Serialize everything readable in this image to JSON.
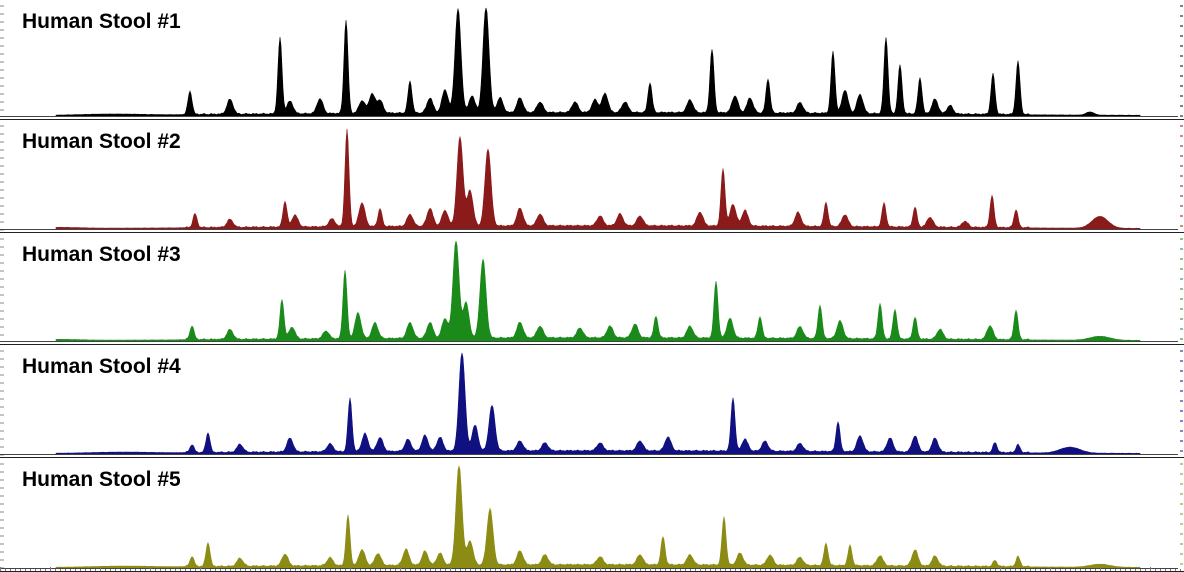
{
  "chart_data": {
    "type": "area",
    "title": "",
    "xlabel": "",
    "ylabel": "",
    "x_range": [
      0,
      1184
    ],
    "y_range": [
      0,
      1
    ],
    "grid": false,
    "legend": "none",
    "peak_shape": "narrow gaussian",
    "series": [
      {
        "name": "Human Stool #1",
        "color": "#000000",
        "baseline": 0.03,
        "peaks": [
          [
            110,
            0.01,
            30
          ],
          [
            190,
            0.22,
            2
          ],
          [
            230,
            0.14,
            3
          ],
          [
            280,
            0.72,
            2
          ],
          [
            290,
            0.12,
            3
          ],
          [
            320,
            0.14,
            3
          ],
          [
            346,
            0.88,
            2
          ],
          [
            362,
            0.12,
            3
          ],
          [
            372,
            0.18,
            3
          ],
          [
            380,
            0.12,
            3
          ],
          [
            410,
            0.3,
            2
          ],
          [
            430,
            0.14,
            3
          ],
          [
            445,
            0.22,
            3
          ],
          [
            458,
            0.98,
            3
          ],
          [
            472,
            0.16,
            3
          ],
          [
            486,
            1.0,
            3
          ],
          [
            500,
            0.14,
            3
          ],
          [
            520,
            0.14,
            3
          ],
          [
            540,
            0.1,
            3
          ],
          [
            575,
            0.1,
            3
          ],
          [
            595,
            0.12,
            3
          ],
          [
            605,
            0.18,
            3
          ],
          [
            625,
            0.1,
            3
          ],
          [
            650,
            0.28,
            2
          ],
          [
            690,
            0.12,
            3
          ],
          [
            712,
            0.6,
            2
          ],
          [
            735,
            0.16,
            3
          ],
          [
            750,
            0.14,
            3
          ],
          [
            768,
            0.32,
            2
          ],
          [
            800,
            0.1,
            3
          ],
          [
            833,
            0.58,
            2
          ],
          [
            845,
            0.22,
            3
          ],
          [
            860,
            0.18,
            3
          ],
          [
            886,
            0.72,
            2
          ],
          [
            900,
            0.46,
            2
          ],
          [
            920,
            0.34,
            2
          ],
          [
            935,
            0.14,
            3
          ],
          [
            950,
            0.08,
            3
          ],
          [
            993,
            0.38,
            2
          ],
          [
            1018,
            0.5,
            2
          ],
          [
            1090,
            0.03,
            4
          ]
        ]
      },
      {
        "name": "Human Stool #2",
        "color": "#8b1a1a",
        "baseline": 0.03,
        "peaks": [
          [
            60,
            0.01,
            20
          ],
          [
            195,
            0.14,
            2
          ],
          [
            230,
            0.08,
            3
          ],
          [
            285,
            0.26,
            2
          ],
          [
            295,
            0.12,
            3
          ],
          [
            332,
            0.08,
            3
          ],
          [
            347,
            0.98,
            2
          ],
          [
            362,
            0.24,
            3
          ],
          [
            380,
            0.18,
            2
          ],
          [
            410,
            0.12,
            3
          ],
          [
            430,
            0.18,
            3
          ],
          [
            445,
            0.16,
            3
          ],
          [
            460,
            0.9,
            3
          ],
          [
            470,
            0.36,
            3
          ],
          [
            488,
            0.78,
            3
          ],
          [
            520,
            0.18,
            3
          ],
          [
            540,
            0.12,
            3
          ],
          [
            600,
            0.1,
            3
          ],
          [
            620,
            0.12,
            3
          ],
          [
            640,
            0.1,
            3
          ],
          [
            700,
            0.14,
            3
          ],
          [
            723,
            0.58,
            2
          ],
          [
            733,
            0.22,
            3
          ],
          [
            745,
            0.16,
            3
          ],
          [
            798,
            0.14,
            3
          ],
          [
            826,
            0.24,
            2
          ],
          [
            845,
            0.12,
            3
          ],
          [
            884,
            0.24,
            2
          ],
          [
            915,
            0.2,
            2
          ],
          [
            930,
            0.1,
            3
          ],
          [
            965,
            0.06,
            3
          ],
          [
            992,
            0.32,
            2
          ],
          [
            1016,
            0.18,
            2
          ],
          [
            1100,
            0.12,
            8
          ]
        ]
      },
      {
        "name": "Human Stool #3",
        "color": "#1a8a1a",
        "baseline": 0.03,
        "peaks": [
          [
            60,
            0.01,
            20
          ],
          [
            192,
            0.14,
            2
          ],
          [
            230,
            0.1,
            3
          ],
          [
            282,
            0.4,
            2
          ],
          [
            292,
            0.12,
            3
          ],
          [
            326,
            0.08,
            3
          ],
          [
            345,
            0.7,
            2
          ],
          [
            358,
            0.26,
            3
          ],
          [
            375,
            0.16,
            3
          ],
          [
            410,
            0.16,
            3
          ],
          [
            430,
            0.16,
            3
          ],
          [
            445,
            0.2,
            3
          ],
          [
            456,
            1.0,
            3
          ],
          [
            466,
            0.36,
            3
          ],
          [
            483,
            0.8,
            3
          ],
          [
            520,
            0.16,
            3
          ],
          [
            540,
            0.12,
            3
          ],
          [
            580,
            0.1,
            3
          ],
          [
            610,
            0.12,
            3
          ],
          [
            635,
            0.14,
            3
          ],
          [
            656,
            0.22,
            2
          ],
          [
            690,
            0.12,
            3
          ],
          [
            716,
            0.58,
            2
          ],
          [
            730,
            0.2,
            3
          ],
          [
            760,
            0.22,
            2
          ],
          [
            800,
            0.12,
            3
          ],
          [
            820,
            0.34,
            2
          ],
          [
            840,
            0.18,
            3
          ],
          [
            880,
            0.36,
            2
          ],
          [
            895,
            0.3,
            2
          ],
          [
            915,
            0.22,
            2
          ],
          [
            940,
            0.1,
            3
          ],
          [
            990,
            0.14,
            3
          ],
          [
            1016,
            0.3,
            2
          ],
          [
            1100,
            0.04,
            10
          ]
        ]
      },
      {
        "name": "Human Stool #4",
        "color": "#101080",
        "baseline": 0.03,
        "peaks": [
          [
            120,
            0.01,
            30
          ],
          [
            192,
            0.08,
            2
          ],
          [
            208,
            0.2,
            2
          ],
          [
            240,
            0.08,
            3
          ],
          [
            290,
            0.14,
            3
          ],
          [
            330,
            0.08,
            3
          ],
          [
            350,
            0.54,
            2
          ],
          [
            365,
            0.18,
            3
          ],
          [
            380,
            0.14,
            3
          ],
          [
            408,
            0.12,
            3
          ],
          [
            425,
            0.16,
            3
          ],
          [
            440,
            0.14,
            3
          ],
          [
            462,
            1.0,
            3
          ],
          [
            475,
            0.26,
            3
          ],
          [
            492,
            0.46,
            3
          ],
          [
            520,
            0.1,
            3
          ],
          [
            545,
            0.08,
            3
          ],
          [
            600,
            0.08,
            3
          ],
          [
            640,
            0.1,
            3
          ],
          [
            668,
            0.14,
            3
          ],
          [
            733,
            0.54,
            2
          ],
          [
            745,
            0.12,
            3
          ],
          [
            765,
            0.1,
            3
          ],
          [
            800,
            0.08,
            3
          ],
          [
            838,
            0.3,
            2
          ],
          [
            860,
            0.16,
            3
          ],
          [
            890,
            0.14,
            3
          ],
          [
            915,
            0.16,
            3
          ],
          [
            935,
            0.14,
            3
          ],
          [
            995,
            0.1,
            2
          ],
          [
            1018,
            0.08,
            2
          ],
          [
            1070,
            0.06,
            10
          ]
        ]
      },
      {
        "name": "Human Stool #5",
        "color": "#8c8c14",
        "baseline": 0.03,
        "peaks": [
          [
            120,
            0.01,
            30
          ],
          [
            192,
            0.1,
            2
          ],
          [
            208,
            0.24,
            2
          ],
          [
            240,
            0.08,
            3
          ],
          [
            285,
            0.12,
            3
          ],
          [
            330,
            0.08,
            3
          ],
          [
            348,
            0.5,
            2
          ],
          [
            362,
            0.16,
            3
          ],
          [
            378,
            0.12,
            3
          ],
          [
            406,
            0.16,
            3
          ],
          [
            425,
            0.14,
            3
          ],
          [
            440,
            0.12,
            3
          ],
          [
            459,
            1.0,
            3
          ],
          [
            470,
            0.24,
            3
          ],
          [
            490,
            0.56,
            3
          ],
          [
            520,
            0.14,
            3
          ],
          [
            545,
            0.1,
            3
          ],
          [
            600,
            0.08,
            3
          ],
          [
            640,
            0.1,
            3
          ],
          [
            663,
            0.28,
            2
          ],
          [
            690,
            0.1,
            3
          ],
          [
            724,
            0.48,
            2
          ],
          [
            740,
            0.12,
            3
          ],
          [
            770,
            0.1,
            3
          ],
          [
            800,
            0.08,
            3
          ],
          [
            826,
            0.22,
            2
          ],
          [
            850,
            0.2,
            2
          ],
          [
            880,
            0.1,
            3
          ],
          [
            915,
            0.16,
            3
          ],
          [
            935,
            0.1,
            3
          ],
          [
            995,
            0.06,
            2
          ],
          [
            1018,
            0.1,
            2
          ],
          [
            1100,
            0.03,
            10
          ]
        ]
      }
    ]
  }
}
